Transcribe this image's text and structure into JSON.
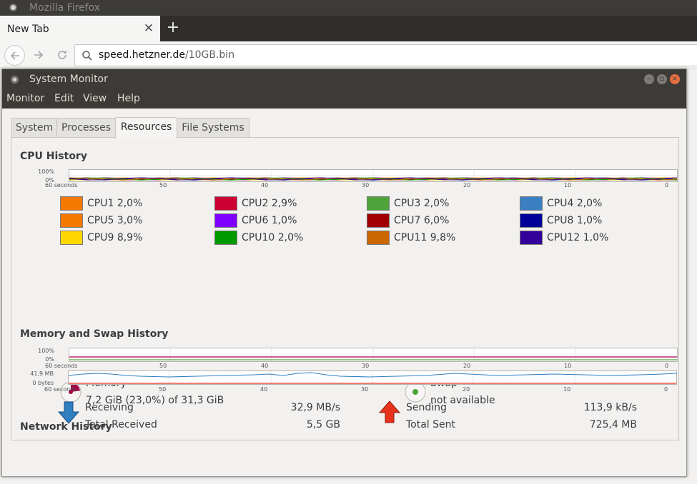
{
  "firefox": {
    "window_title": "Mozilla Firefox",
    "tab_title": "New Tab",
    "tab_close": "×",
    "new_tab": "+",
    "url_host": "speed.hetzner.de",
    "url_path": "/10GB.bin",
    "icons": {
      "back": "back-arrow",
      "forward": "forward-arrow",
      "reload": "reload",
      "search": "magnifier"
    }
  },
  "sysmon": {
    "title": "System Monitor",
    "menus": [
      "Monitor",
      "Edit",
      "View",
      "Help"
    ],
    "tabs": [
      "System",
      "Processes",
      "Resources",
      "File Systems"
    ],
    "active_tab": "Resources",
    "x_axis_ticks": [
      "60 seconds",
      "50",
      "40",
      "30",
      "20",
      "10",
      "0"
    ],
    "cpu": {
      "title": "CPU History",
      "y_ticks": [
        "100%",
        "0%"
      ],
      "items": [
        {
          "name": "CPU1",
          "value": "2,0%",
          "color": "#f57900"
        },
        {
          "name": "CPU2",
          "value": "2,9%",
          "color": "#cc0033"
        },
        {
          "name": "CPU3",
          "value": "2,0%",
          "color": "#4ea33b"
        },
        {
          "name": "CPU4",
          "value": "2,0%",
          "color": "#3a7fc2"
        },
        {
          "name": "CPU5",
          "value": "3,0%",
          "color": "#f57900"
        },
        {
          "name": "CPU6",
          "value": "1,0%",
          "color": "#8000ff"
        },
        {
          "name": "CPU7",
          "value": "6,0%",
          "color": "#a00000"
        },
        {
          "name": "CPU8",
          "value": "1,0%",
          "color": "#000099"
        },
        {
          "name": "CPU9",
          "value": "8,9%",
          "color": "#ffd700"
        },
        {
          "name": "CPU10",
          "value": "2,0%",
          "color": "#009900"
        },
        {
          "name": "CPU11",
          "value": "9,8%",
          "color": "#cc6600"
        },
        {
          "name": "CPU12",
          "value": "1,0%",
          "color": "#330099"
        }
      ]
    },
    "memory": {
      "title": "Memory and Swap History",
      "y_ticks": [
        "100%",
        "0%"
      ],
      "mem_label": "Memory",
      "mem_value": "7,2 GiB (23,0%) of 31,3 GiB",
      "mem_fraction": 0.23,
      "mem_color": "#a40048",
      "swap_label": "Swap",
      "swap_value": "not available",
      "swap_color": "#4ea33b"
    },
    "network": {
      "title": "Network History",
      "y_ticks": [
        "41,9 MB",
        "0 bytes"
      ],
      "receiving_label": "Receiving",
      "receiving_value": "32,9 MB/s",
      "total_received_label": "Total Received",
      "total_received_value": "5,5 GB",
      "sending_label": "Sending",
      "sending_value": "113,9 kB/s",
      "total_sent_label": "Total Sent",
      "total_sent_value": "725,4 MB",
      "receive_color": "#2f7fc1",
      "send_color": "#e8321c"
    }
  }
}
